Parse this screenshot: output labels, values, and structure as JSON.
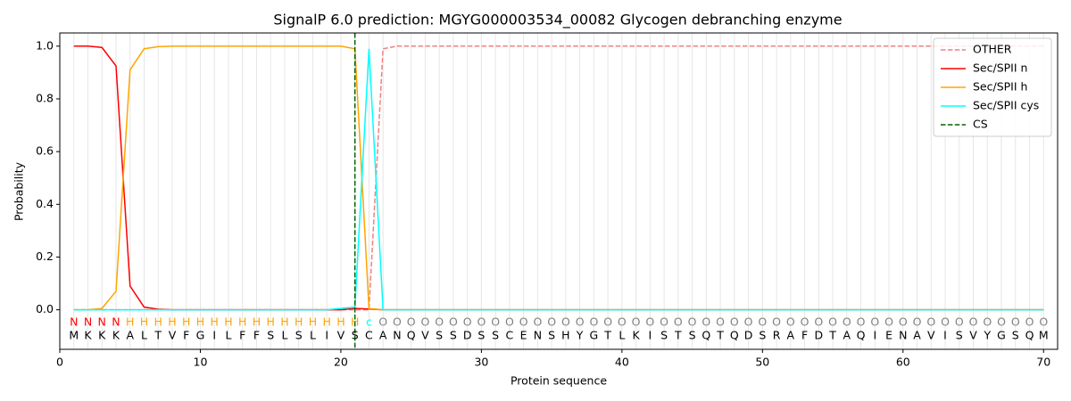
{
  "chart_data": {
    "type": "line",
    "title": "SignalP 6.0 prediction: MGYG000003534_00082 Glycogen debranching enzyme",
    "x_label": "Protein sequence",
    "y_label": "Probability",
    "xlim": [
      0,
      71
    ],
    "ylim": [
      -0.15,
      1.05
    ],
    "xticks": [
      0,
      10,
      20,
      30,
      40,
      50,
      60,
      70
    ],
    "yticks": [
      {
        "value": 0,
        "label": "0.0"
      },
      {
        "value": 0.2,
        "label": "0.2"
      },
      {
        "value": 0.4,
        "label": "0.4"
      },
      {
        "value": 0.6,
        "label": "0.6"
      },
      {
        "value": 0.8,
        "label": "0.8"
      },
      {
        "value": 1,
        "label": "1.0"
      }
    ],
    "grid": true,
    "legend": "upper right",
    "x": [
      1,
      2,
      3,
      4,
      5,
      6,
      7,
      8,
      9,
      10,
      11,
      12,
      13,
      14,
      15,
      16,
      17,
      18,
      19,
      20,
      21,
      22,
      23,
      24,
      25,
      26,
      27,
      28,
      29,
      30,
      31,
      32,
      33,
      34,
      35,
      36,
      37,
      38,
      39,
      40,
      41,
      42,
      43,
      44,
      45,
      46,
      47,
      48,
      49,
      50,
      51,
      52,
      53,
      54,
      55,
      56,
      57,
      58,
      59,
      60,
      61,
      62,
      63,
      64,
      65,
      66,
      67,
      68,
      69,
      70
    ],
    "sequence": [
      "M",
      "K",
      "K",
      "K",
      "A",
      "L",
      "T",
      "V",
      "F",
      "G",
      "I",
      "L",
      "F",
      "F",
      "S",
      "L",
      "S",
      "L",
      "I",
      "V",
      "S",
      "C",
      "A",
      "N",
      "Q",
      "V",
      "S",
      "S",
      "D",
      "S",
      "S",
      "C",
      "E",
      "N",
      "S",
      "H",
      "Y",
      "G",
      "T",
      "L",
      "K",
      "I",
      "S",
      "T",
      "S",
      "Q",
      "T",
      "Q",
      "D",
      "S",
      "R",
      "A",
      "F",
      "D",
      "T",
      "A",
      "Q",
      "I",
      "E",
      "N",
      "A",
      "V",
      "I",
      "S",
      "V",
      "Y",
      "G",
      "S",
      "Q",
      "M"
    ],
    "labels": [
      "N",
      "N",
      "N",
      "N",
      "H",
      "H",
      "H",
      "H",
      "H",
      "H",
      "H",
      "H",
      "H",
      "H",
      "H",
      "H",
      "H",
      "H",
      "H",
      "H",
      "H",
      "c",
      "O",
      "O",
      "O",
      "O",
      "O",
      "O",
      "O",
      "O",
      "O",
      "O",
      "O",
      "O",
      "O",
      "O",
      "O",
      "O",
      "O",
      "O",
      "O",
      "O",
      "O",
      "O",
      "O",
      "O",
      "O",
      "O",
      "O",
      "O",
      "O",
      "O",
      "O",
      "O",
      "O",
      "O",
      "O",
      "O",
      "O",
      "O",
      "O",
      "O",
      "O",
      "O",
      "O",
      "O",
      "O",
      "O",
      "O",
      "O"
    ],
    "label_colors": {
      "N": "#ff0000",
      "H": "#ffa500",
      "c": "#00ffff",
      "O": "#808080"
    },
    "series": [
      {
        "name": "OTHER",
        "color": "#f08080",
        "dashed": true,
        "values": [
          0,
          0,
          0,
          0,
          0,
          0,
          0,
          0,
          0,
          0,
          0,
          0,
          0,
          0,
          0,
          0,
          0,
          0,
          0,
          0,
          0,
          0,
          0.99,
          1,
          1,
          1,
          1,
          1,
          1,
          1,
          1,
          1,
          1,
          1,
          1,
          1,
          1,
          1,
          1,
          1,
          1,
          1,
          1,
          1,
          1,
          1,
          1,
          1,
          1,
          1,
          1,
          1,
          1,
          1,
          1,
          1,
          1,
          1,
          1,
          1,
          1,
          1,
          1,
          1,
          1,
          1,
          1,
          1,
          1,
          1
        ]
      },
      {
        "name": "Sec/SPII n",
        "color": "#ff0000",
        "values": [
          1,
          1,
          0.995,
          0.925,
          0.09,
          0.01,
          0.002,
          0,
          0,
          0,
          0,
          0,
          0,
          0,
          0,
          0,
          0,
          0,
          0,
          0,
          0.005,
          0.003,
          0,
          0,
          0,
          0,
          0,
          0,
          0,
          0,
          0,
          0,
          0,
          0,
          0,
          0,
          0,
          0,
          0,
          0,
          0,
          0,
          0,
          0,
          0,
          0,
          0,
          0,
          0,
          0,
          0,
          0,
          0,
          0,
          0,
          0,
          0,
          0,
          0,
          0,
          0,
          0,
          0,
          0,
          0,
          0,
          0,
          0,
          0,
          0
        ]
      },
      {
        "name": "Sec/SPII h",
        "color": "#ffa500",
        "values": [
          0,
          0,
          0.005,
          0.07,
          0.91,
          0.99,
          0.998,
          1,
          1,
          1,
          1,
          1,
          1,
          1,
          1,
          1,
          1,
          1,
          1,
          1,
          0.99,
          0.005,
          0,
          0,
          0,
          0,
          0,
          0,
          0,
          0,
          0,
          0,
          0,
          0,
          0,
          0,
          0,
          0,
          0,
          0,
          0,
          0,
          0,
          0,
          0,
          0,
          0,
          0,
          0,
          0,
          0,
          0,
          0,
          0,
          0,
          0,
          0,
          0,
          0,
          0,
          0,
          0,
          0,
          0,
          0,
          0,
          0,
          0,
          0,
          0
        ]
      },
      {
        "name": "Sec/SPII cys",
        "color": "#00ffff",
        "values": [
          0,
          0,
          0,
          0,
          0,
          0,
          0,
          0,
          0,
          0,
          0,
          0,
          0,
          0,
          0,
          0,
          0,
          0,
          0,
          0.005,
          0.01,
          0.99,
          0,
          0,
          0,
          0,
          0,
          0,
          0,
          0,
          0,
          0,
          0,
          0,
          0,
          0,
          0,
          0,
          0,
          0,
          0,
          0,
          0,
          0,
          0,
          0,
          0,
          0,
          0,
          0,
          0,
          0,
          0,
          0,
          0,
          0,
          0,
          0,
          0,
          0,
          0,
          0,
          0,
          0,
          0,
          0,
          0,
          0,
          0,
          0
        ]
      }
    ],
    "cs": {
      "name": "CS",
      "color": "#006400",
      "x": 21
    }
  }
}
